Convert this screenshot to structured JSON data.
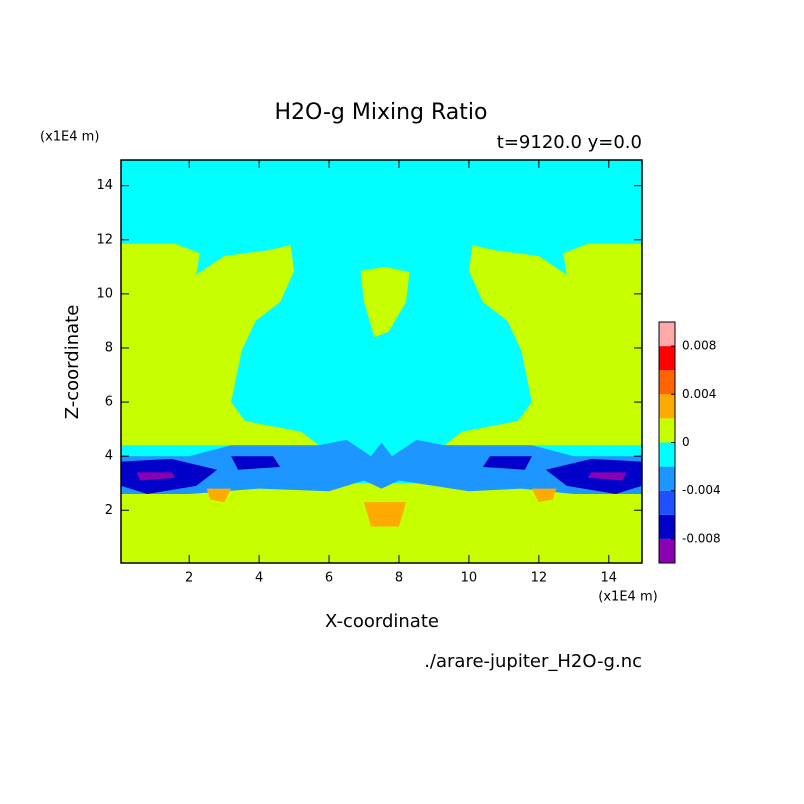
{
  "chart_data": {
    "type": "contour",
    "title": "H2O-g Mixing Ratio",
    "subtitle": "t=9120.0 y=0.0",
    "y_unit": "(x1E4 m)",
    "x_unit": "(x1E4 m)",
    "xlabel": "X-coordinate",
    "ylabel": "Z-coordinate",
    "source": "./arare-jupiter_H2O-g.nc",
    "xlim": [
      0.05,
      14.95
    ],
    "ylim": [
      0.05,
      14.95
    ],
    "xticks": [
      2,
      4,
      6,
      8,
      10,
      12,
      14
    ],
    "yticks": [
      2,
      4,
      6,
      8,
      10,
      12,
      14
    ],
    "colorbar": {
      "clim": [
        -0.01,
        0.01
      ],
      "levels": [
        -0.008,
        -0.006,
        -0.004,
        -0.002,
        0,
        0.002,
        0.004,
        0.006,
        0.008
      ],
      "colors": [
        "#8c00b4",
        "#0000c8",
        "#1e50ff",
        "#1e96ff",
        "#00ffff",
        "#c8ff00",
        "#ffaa00",
        "#ff6400",
        "#ff0000",
        "#ffaaaa"
      ],
      "ticks": [
        -0.008,
        -0.004,
        0,
        0.004,
        0.008
      ]
    },
    "background_band": 4,
    "regions": [
      {
        "band": 5,
        "x": [
          0.05,
          14.95,
          14.95,
          0.05
        ],
        "z": [
          0.05,
          0.05,
          3.0,
          3.0
        ]
      },
      {
        "band": 5,
        "x": [
          0.06,
          1.6,
          2.3,
          2.2,
          3.0,
          4.2,
          4.9,
          5.0,
          4.6,
          3.9,
          3.5,
          3.2,
          3.6,
          5.2,
          5.7,
          0.06
        ],
        "z": [
          11.85,
          11.85,
          11.5,
          10.7,
          11.4,
          11.6,
          11.8,
          10.85,
          9.7,
          9.0,
          7.9,
          6.0,
          5.3,
          4.9,
          4.4,
          4.4
        ]
      },
      {
        "band": 5,
        "x": [
          14.94,
          13.4,
          12.7,
          12.8,
          12.0,
          10.8,
          10.1,
          10.0,
          10.4,
          11.1,
          11.5,
          11.8,
          11.4,
          9.8,
          9.3,
          14.94
        ],
        "z": [
          11.85,
          11.85,
          11.5,
          10.7,
          11.4,
          11.6,
          11.8,
          10.85,
          9.7,
          9.0,
          7.9,
          6.0,
          5.3,
          4.9,
          4.4,
          4.4
        ]
      },
      {
        "band": 5,
        "x": [
          6.9,
          7.6,
          8.3,
          8.2,
          7.7,
          7.3,
          7.0
        ],
        "z": [
          10.85,
          11.0,
          10.8,
          9.7,
          8.6,
          8.4,
          9.7
        ]
      },
      {
        "band": 3,
        "x": [
          0.06,
          2,
          3.2,
          5.7,
          6.5,
          7.2,
          7.5,
          7.8,
          8.5,
          9.3,
          11.8,
          13,
          14.94,
          14.94,
          13,
          11.5,
          10,
          9,
          8,
          7.5,
          7,
          6,
          4,
          2,
          0.06
        ],
        "z": [
          4.0,
          4.0,
          4.4,
          4.4,
          4.6,
          4.0,
          4.5,
          4.0,
          4.6,
          4.4,
          4.4,
          4.0,
          4.0,
          2.6,
          2.6,
          2.8,
          2.7,
          2.9,
          3.1,
          2.8,
          3.1,
          2.7,
          2.8,
          2.6,
          2.6
        ]
      },
      {
        "band": 1,
        "x": [
          0.06,
          1.5,
          2.8,
          2.2,
          0.8,
          0.06
        ],
        "z": [
          3.8,
          3.9,
          3.5,
          2.9,
          2.6,
          2.9
        ]
      },
      {
        "band": 1,
        "x": [
          14.94,
          13.5,
          12.2,
          12.8,
          14.2,
          14.94
        ],
        "z": [
          3.8,
          3.9,
          3.5,
          2.9,
          2.6,
          2.9
        ]
      },
      {
        "band": 1,
        "x": [
          3.2,
          4.4,
          4.6,
          3.4
        ],
        "z": [
          4.0,
          4.0,
          3.6,
          3.5
        ]
      },
      {
        "band": 1,
        "x": [
          10.6,
          11.8,
          11.6,
          10.4
        ],
        "z": [
          4.0,
          4.0,
          3.5,
          3.6
        ]
      },
      {
        "band": 0,
        "x": [
          0.5,
          1.5,
          1.6,
          0.6
        ],
        "z": [
          3.4,
          3.4,
          3.2,
          3.1
        ]
      },
      {
        "band": 0,
        "x": [
          13.5,
          14.5,
          14.4,
          13.4
        ],
        "z": [
          3.4,
          3.4,
          3.1,
          3.2
        ]
      },
      {
        "band": 6,
        "x": [
          2.5,
          3.2,
          3.0,
          2.6
        ],
        "z": [
          2.8,
          2.8,
          2.3,
          2.4
        ]
      },
      {
        "band": 6,
        "x": [
          7.0,
          8.2,
          8.0,
          7.2
        ],
        "z": [
          2.3,
          2.3,
          1.4,
          1.4
        ]
      },
      {
        "band": 6,
        "x": [
          11.8,
          12.5,
          12.4,
          12.0
        ],
        "z": [
          2.8,
          2.8,
          2.4,
          2.3
        ]
      }
    ]
  }
}
